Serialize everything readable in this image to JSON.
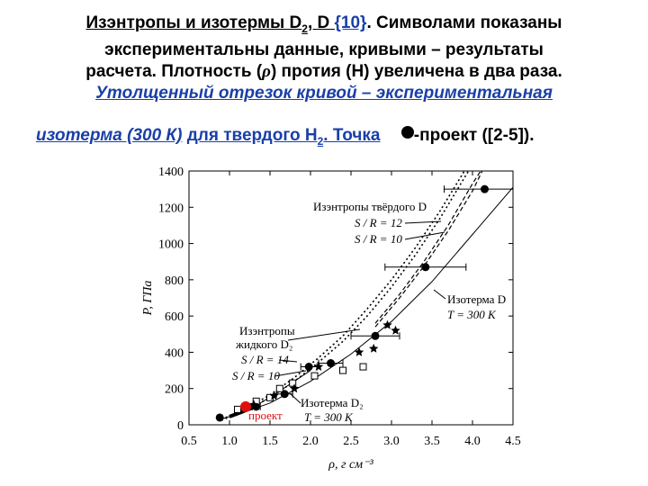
{
  "header": {
    "line1_a": "Изэнтропы и изотермы D",
    "line1_sub": "2",
    "line1_b": ", D ",
    "line1_ref": "{10}",
    "line1_c": ". Символами показаны",
    "line2": "экспериментальны данные, кривыми – результаты",
    "line3_a": "расчета. Плотность (",
    "line3_rho": "ρ",
    "line3_b": ") протия (H) увеличена в два раза.",
    "line4": "Утолщенный отрезок кривой – экспериментальная",
    "line5_a": "изотерма (300 К)",
    "line5_b": "для твердого H",
    "line5_sub": "2",
    "line5_c": ". Точка",
    "line5_d": "-проект ([2-5])."
  },
  "chart_data": {
    "type": "scatter",
    "xlabel": "ρ, г см⁻³",
    "ylabel": "P, ГПа",
    "xlim": [
      0.5,
      4.5
    ],
    "ylim": [
      0,
      1400
    ],
    "xticks": [
      "0.5",
      "1.0",
      "1.5",
      "2.0",
      "2.5",
      "3.0",
      "3.5",
      "4.0",
      "4.5"
    ],
    "yticks": [
      "0",
      "200",
      "400",
      "600",
      "800",
      "1000",
      "1200",
      "1400"
    ],
    "annotations": {
      "solid_isentropes": "Изэнтропы твёрдого D",
      "sr12": "S / R = 12",
      "sr10": "S / R = 10",
      "isotherm_d": "Изотерма D",
      "isotherm_d_t": "T = 300 K",
      "liquid_isentropes_1": "Изэнтропы",
      "liquid_isentropes_2": "жидкого D₂",
      "liquid_sr14": "S / R = 14",
      "liquid_sr10": "S / R = 10",
      "isotherm_d2": "Изотерма D₂",
      "isotherm_d2_t": "T = 300 K",
      "project": "проект"
    },
    "curves": {
      "isotherm_d2": [
        [
          0.85,
          25
        ],
        [
          1.0,
          45
        ],
        [
          1.2,
          80
        ],
        [
          1.4,
          125
        ],
        [
          1.6,
          180
        ],
        [
          1.8,
          240
        ],
        [
          2.0,
          300
        ]
      ],
      "isotherm_d": [
        [
          1.0,
          40
        ],
        [
          1.5,
          120
        ],
        [
          2.0,
          240
        ],
        [
          2.5,
          390
        ],
        [
          3.0,
          570
        ],
        [
          3.5,
          790
        ],
        [
          4.0,
          1050
        ],
        [
          4.5,
          1310
        ]
      ],
      "liquid_sr14": [
        [
          0.9,
          30
        ],
        [
          1.2,
          90
        ],
        [
          1.5,
          165
        ],
        [
          1.8,
          260
        ],
        [
          2.1,
          370
        ],
        [
          2.4,
          490
        ],
        [
          2.7,
          640
        ],
        [
          3.0,
          800
        ],
        [
          3.3,
          980
        ],
        [
          3.6,
          1180
        ],
        [
          3.9,
          1400
        ]
      ],
      "liquid_sr10": [
        [
          0.9,
          25
        ],
        [
          1.2,
          80
        ],
        [
          1.5,
          150
        ],
        [
          1.8,
          240
        ],
        [
          2.1,
          345
        ],
        [
          2.4,
          460
        ],
        [
          2.7,
          600
        ],
        [
          3.0,
          760
        ],
        [
          3.3,
          940
        ],
        [
          3.6,
          1140
        ],
        [
          3.95,
          1400
        ]
      ],
      "solid_sr12": [
        [
          2.8,
          560
        ],
        [
          3.1,
          720
        ],
        [
          3.4,
          900
        ],
        [
          3.7,
          1100
        ],
        [
          4.0,
          1330
        ],
        [
          4.1,
          1400
        ]
      ],
      "solid_sr10": [
        [
          2.8,
          540
        ],
        [
          3.1,
          700
        ],
        [
          3.4,
          875
        ],
        [
          3.7,
          1070
        ],
        [
          4.0,
          1290
        ],
        [
          4.12,
          1400
        ]
      ],
      "thick_isotherm": [
        [
          1.0,
          45
        ],
        [
          1.15,
          70
        ],
        [
          1.3,
          100
        ]
      ]
    },
    "points_filled": [
      {
        "x": 0.88,
        "y": 40,
        "xerr": 0.0
      },
      {
        "x": 1.33,
        "y": 100,
        "xerr": 0.05
      },
      {
        "x": 1.68,
        "y": 170,
        "xerr": 0.1
      },
      {
        "x": 1.98,
        "y": 320,
        "xerr": 0.1
      },
      {
        "x": 2.25,
        "y": 340,
        "xerr": 0.15
      },
      {
        "x": 2.8,
        "y": 490,
        "xerr": 0.3
      },
      {
        "x": 3.42,
        "y": 870,
        "xerr": 0.5
      },
      {
        "x": 4.15,
        "y": 1300,
        "xerr": 0.5
      }
    ],
    "points_open_square": [
      {
        "x": 1.1,
        "y": 85
      },
      {
        "x": 1.33,
        "y": 130
      },
      {
        "x": 1.5,
        "y": 150
      },
      {
        "x": 1.62,
        "y": 200
      },
      {
        "x": 1.78,
        "y": 230
      },
      {
        "x": 2.05,
        "y": 270
      },
      {
        "x": 2.4,
        "y": 300
      },
      {
        "x": 2.65,
        "y": 320
      }
    ],
    "points_star": [
      {
        "x": 1.3,
        "y": 110
      },
      {
        "x": 1.55,
        "y": 160
      },
      {
        "x": 1.8,
        "y": 200
      },
      {
        "x": 2.1,
        "y": 320
      },
      {
        "x": 2.6,
        "y": 400
      },
      {
        "x": 2.78,
        "y": 420
      },
      {
        "x": 2.95,
        "y": 550
      },
      {
        "x": 3.05,
        "y": 520
      }
    ],
    "point_project": {
      "x": 1.2,
      "y": 100
    }
  }
}
